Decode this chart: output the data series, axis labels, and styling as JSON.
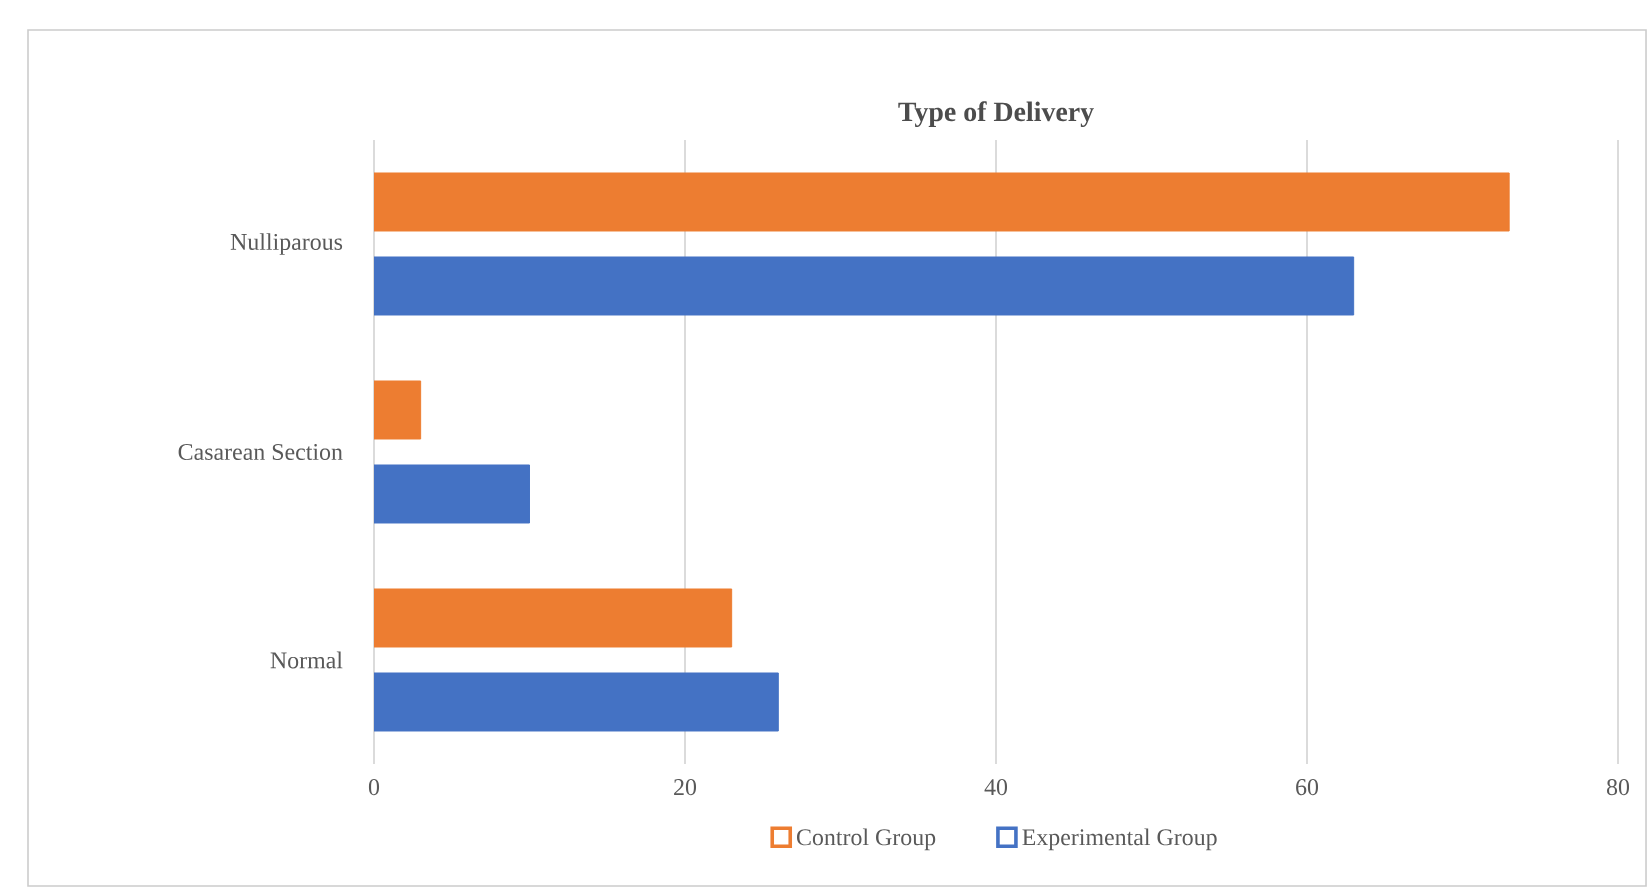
{
  "chart_data": {
    "type": "bar",
    "orientation": "horizontal",
    "title": "Type of Delivery",
    "categories": [
      "Nulliparous",
      "Casarean Section",
      "Normal"
    ],
    "series": [
      {
        "name": "Control Group",
        "color": "#ed7d31",
        "values": [
          73,
          3,
          23
        ]
      },
      {
        "name": "Experimental Group",
        "color": "#4472c4",
        "values": [
          63,
          10,
          26
        ]
      }
    ],
    "xlim": [
      0,
      80
    ],
    "xticks": [
      0,
      20,
      40,
      60,
      80
    ],
    "grid": "x",
    "legend": "bottom"
  }
}
